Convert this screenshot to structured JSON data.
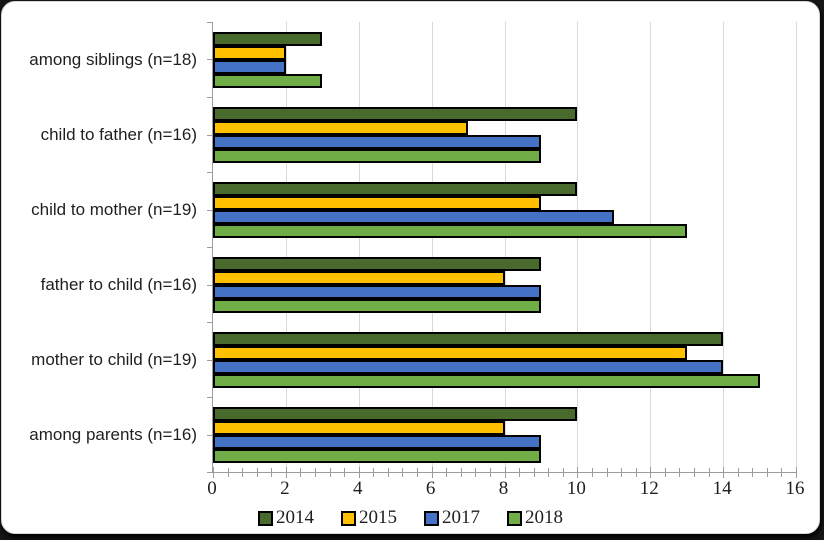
{
  "chart_data": {
    "type": "bar",
    "orientation": "horizontal",
    "title": "",
    "xlabel": "",
    "ylabel": "",
    "categories": [
      "among siblings (n=18)",
      "child to father (n=16)",
      "child to mother (n=19)",
      "father to child (n=16)",
      "mother to child (n=19)",
      "among parents (n=16)"
    ],
    "series": [
      {
        "name": "2014",
        "color": "#486a2c",
        "values": [
          3,
          10,
          10,
          9,
          14,
          10
        ]
      },
      {
        "name": "2015",
        "color": "#ffc000",
        "values": [
          2,
          7,
          9,
          8,
          13,
          8
        ]
      },
      {
        "name": "2017",
        "color": "#4472c4",
        "values": [
          2,
          9,
          11,
          9,
          14,
          9
        ]
      },
      {
        "name": "2018",
        "color": "#70ad47",
        "values": [
          3,
          9,
          13,
          9,
          15,
          9
        ]
      }
    ],
    "xlim": [
      0,
      16
    ],
    "x_major_tick_labels": [
      "0",
      "2",
      "4",
      "6",
      "8",
      "10",
      "12",
      "14",
      "16"
    ],
    "x_major_unit": 2,
    "x_minor_unit": 0.4,
    "grid": "vertical-major-gridlines",
    "legend_position": "bottom"
  },
  "colors": {
    "bar_outline": "#000000",
    "gridline": "#d9d9d9",
    "axis_line": "#9c9c9c",
    "text": "#1f1f1f",
    "card_background": "#ffffff",
    "card_border": "#d9d9d9"
  }
}
